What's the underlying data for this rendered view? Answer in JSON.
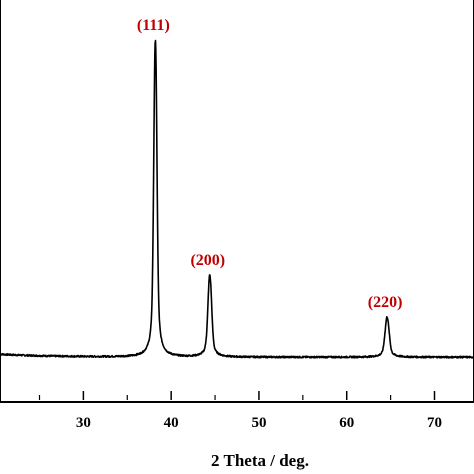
{
  "chart_data": {
    "type": "line",
    "title": "",
    "xlabel": "2 Theta / deg.",
    "ylabel": "",
    "xlim": [
      20.5,
      74.5
    ],
    "ylim": [
      0,
      100
    ],
    "x_ticks": [
      30,
      40,
      50,
      60,
      70
    ],
    "x_tick_labels": [
      "30",
      "40",
      "50",
      "60",
      "70"
    ],
    "x_minor_ticks": [
      25,
      35,
      45,
      55,
      65
    ],
    "annotation_color": "#c00000",
    "line_color": "#000000",
    "baseline": 1.5,
    "peaks": [
      {
        "label": "(111)",
        "x": 38.2,
        "height": 100,
        "width": 0.17
      },
      {
        "label": "(200)",
        "x": 44.4,
        "height": 27,
        "width": 0.2
      },
      {
        "label": "(220)",
        "x": 64.6,
        "height": 14,
        "width": 0.22
      }
    ],
    "series": [
      {
        "x": [
          20.5,
          25,
          30,
          35,
          37.0,
          37.7,
          38.0,
          38.2,
          38.4,
          38.7,
          39.4,
          42,
          43.8,
          44.2,
          44.4,
          44.6,
          45.0,
          50,
          55,
          60,
          63.9,
          64.4,
          64.6,
          64.8,
          65.3,
          70,
          74.5
        ],
        "y": [
          2.2,
          1.7,
          1.3,
          1.2,
          1.6,
          5,
          49,
          100,
          49,
          5,
          1.8,
          1.5,
          3.5,
          20,
          27,
          20,
          3.5,
          1.4,
          1.4,
          1.4,
          2.2,
          10.5,
          14,
          10.5,
          2.2,
          1.3,
          1.2
        ]
      }
    ]
  }
}
